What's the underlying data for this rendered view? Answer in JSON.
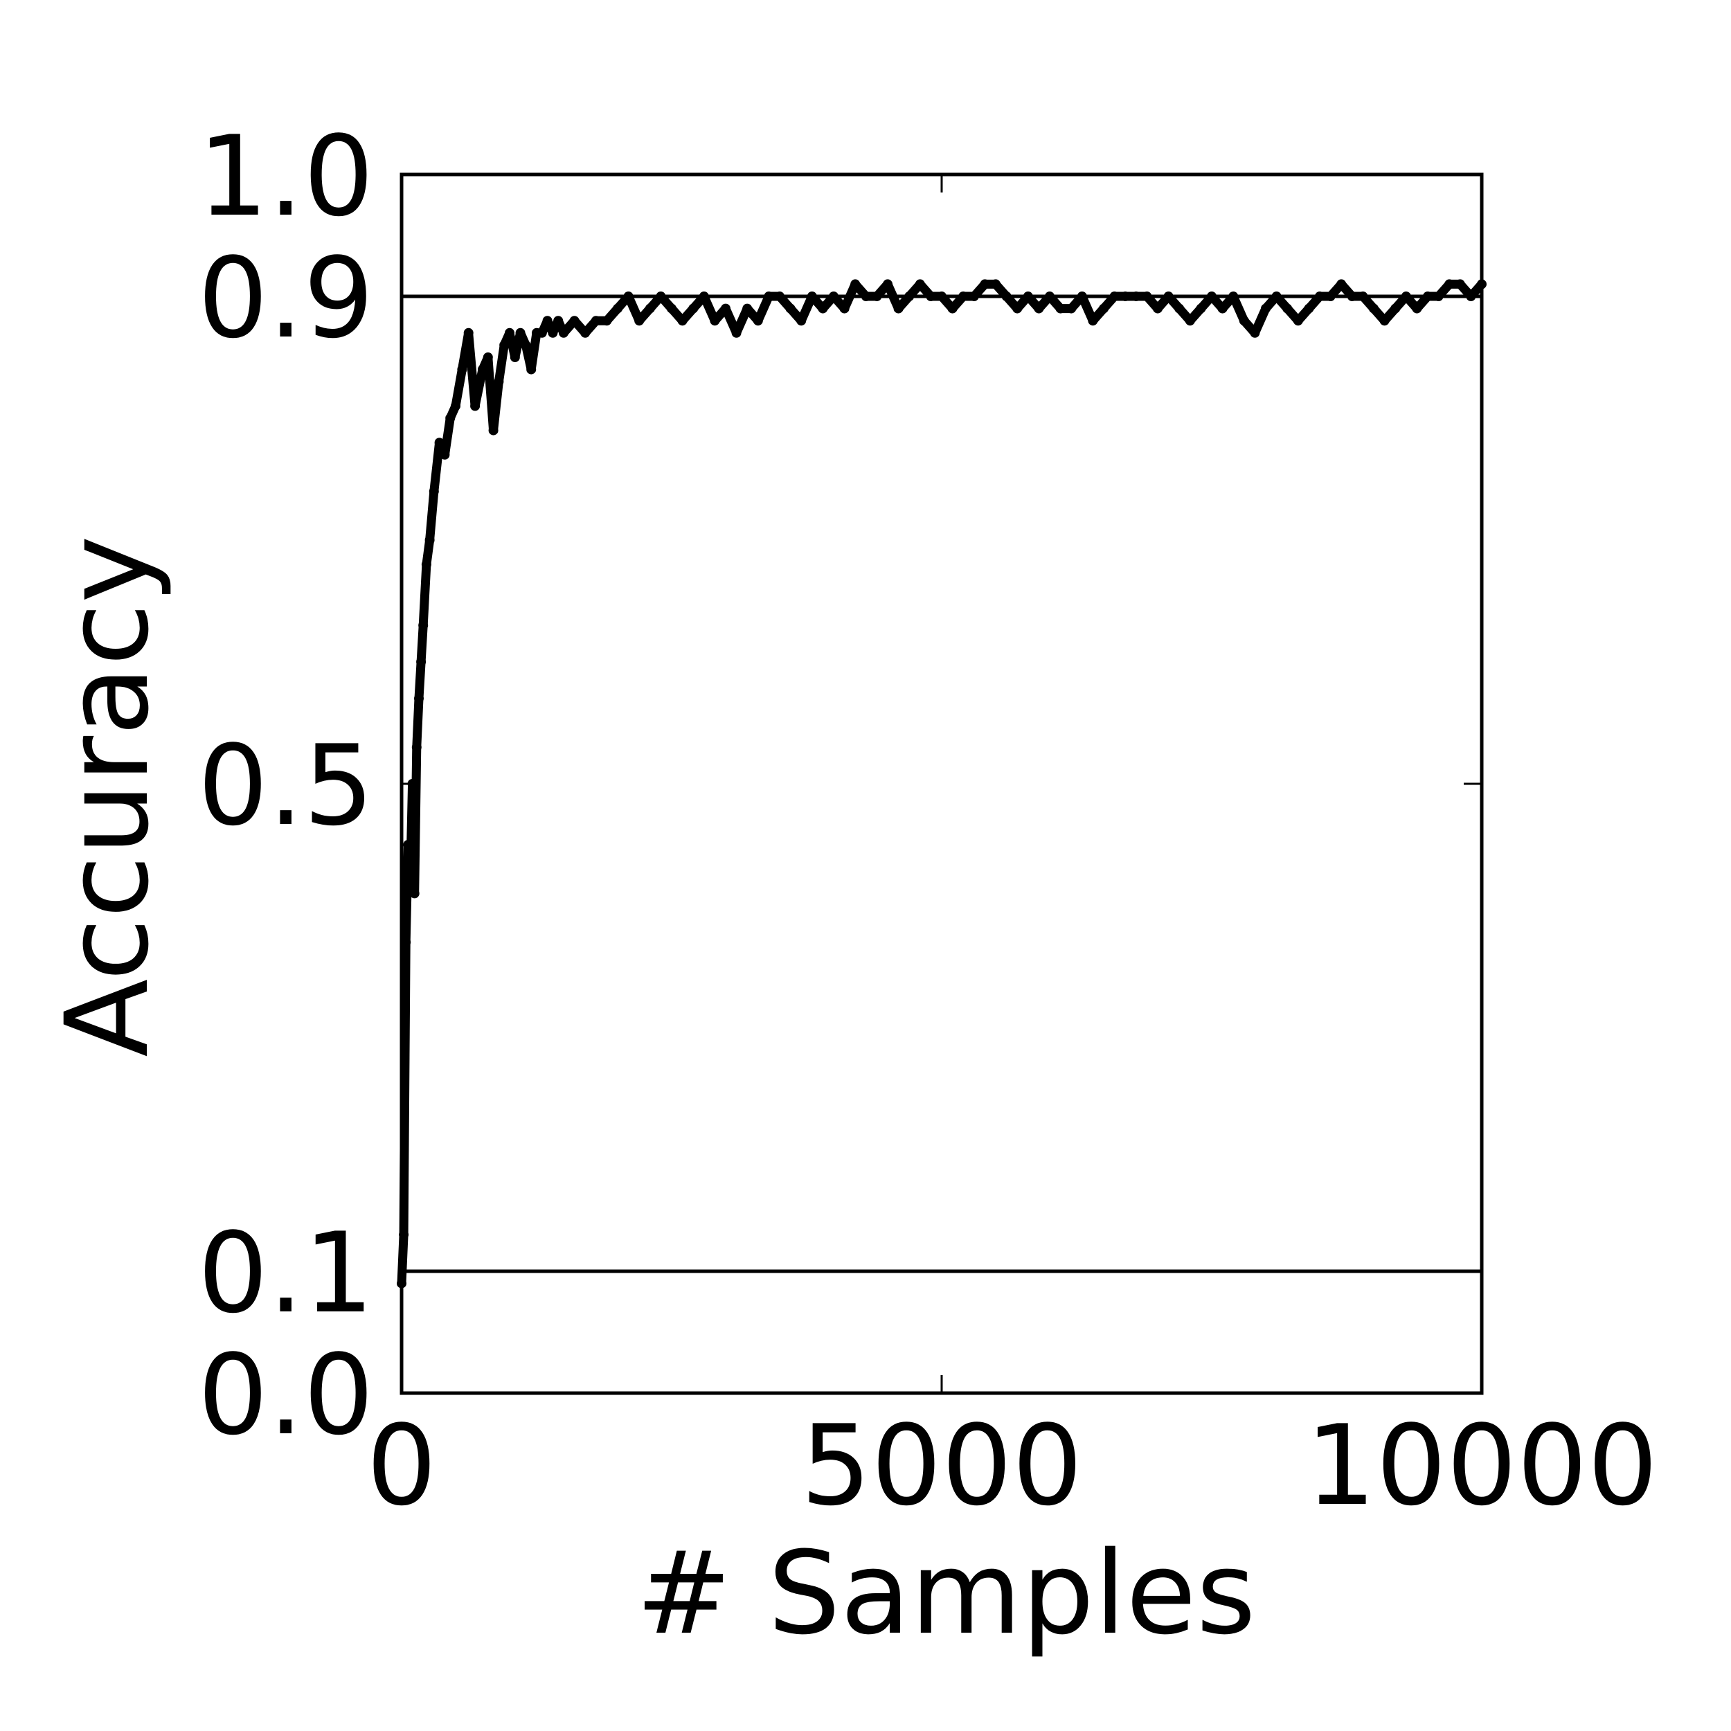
{
  "chart_data": {
    "type": "line",
    "title": "",
    "xlabel": "# Samples",
    "ylabel": "Accuracy",
    "xlim": [
      0,
      10000
    ],
    "ylim": [
      0.0,
      1.0
    ],
    "x_ticks": [
      0,
      5000,
      10000
    ],
    "x_tick_labels": [
      "0",
      "5000",
      "10000"
    ],
    "y_ticks": [
      0.0,
      0.1,
      0.5,
      0.9,
      1.0
    ],
    "y_tick_labels": [
      "0.0",
      "0.1",
      "0.5",
      "0.9",
      "1.0"
    ],
    "grid": false,
    "legend": "none",
    "reference_lines": [
      {
        "axis": "y",
        "value": 0.1
      },
      {
        "axis": "y",
        "value": 0.9
      }
    ],
    "colors": {
      "line": "#000000",
      "axes": "#000000",
      "background": "#ffffff"
    },
    "series": [
      {
        "x": [
          0,
          20,
          40,
          60,
          80,
          100,
          120,
          140,
          160,
          180,
          200,
          230,
          260,
          300,
          350,
          400,
          450,
          500,
          560,
          620,
          680,
          750,
          800,
          850,
          900,
          950,
          1000,
          1050,
          1100,
          1150,
          1200,
          1250,
          1300,
          1350,
          1400,
          1450,
          1500,
          1600,
          1700,
          1800,
          1900,
          2000,
          2100,
          2200,
          2300,
          2400,
          2500,
          2600,
          2700,
          2800,
          2900,
          3000,
          3100,
          3200,
          3300,
          3400,
          3500,
          3600,
          3700,
          3800,
          3900,
          4000,
          4100,
          4200,
          4300,
          4400,
          4500,
          4600,
          4700,
          4800,
          4900,
          5000,
          5100,
          5200,
          5300,
          5400,
          5500,
          5600,
          5700,
          5800,
          5900,
          6000,
          6100,
          6200,
          6300,
          6400,
          6500,
          6600,
          6700,
          6800,
          6900,
          7000,
          7100,
          7200,
          7300,
          7400,
          7500,
          7600,
          7700,
          7800,
          7900,
          8000,
          8100,
          8200,
          8300,
          8400,
          8500,
          8600,
          8700,
          8800,
          8900,
          9000,
          9100,
          9200,
          9300,
          9400,
          9500,
          9600,
          9700,
          9800,
          9900,
          10000
        ],
        "y": [
          0.09,
          0.13,
          0.37,
          0.45,
          0.42,
          0.5,
          0.41,
          0.53,
          0.57,
          0.6,
          0.63,
          0.68,
          0.7,
          0.74,
          0.78,
          0.77,
          0.8,
          0.81,
          0.84,
          0.87,
          0.81,
          0.84,
          0.85,
          0.79,
          0.83,
          0.86,
          0.87,
          0.85,
          0.87,
          0.86,
          0.84,
          0.87,
          0.87,
          0.88,
          0.87,
          0.88,
          0.87,
          0.88,
          0.87,
          0.88,
          0.88,
          0.89,
          0.9,
          0.88,
          0.89,
          0.9,
          0.89,
          0.88,
          0.89,
          0.9,
          0.88,
          0.89,
          0.87,
          0.89,
          0.88,
          0.9,
          0.9,
          0.89,
          0.88,
          0.9,
          0.89,
          0.9,
          0.89,
          0.91,
          0.9,
          0.9,
          0.91,
          0.89,
          0.9,
          0.91,
          0.9,
          0.9,
          0.89,
          0.9,
          0.9,
          0.91,
          0.91,
          0.9,
          0.89,
          0.9,
          0.89,
          0.9,
          0.89,
          0.89,
          0.9,
          0.88,
          0.89,
          0.9,
          0.9,
          0.9,
          0.9,
          0.89,
          0.9,
          0.89,
          0.88,
          0.89,
          0.9,
          0.89,
          0.9,
          0.88,
          0.87,
          0.89,
          0.9,
          0.89,
          0.88,
          0.89,
          0.9,
          0.9,
          0.91,
          0.9,
          0.9,
          0.89,
          0.88,
          0.89,
          0.9,
          0.89,
          0.9,
          0.9,
          0.91,
          0.91,
          0.9,
          0.91
        ]
      }
    ]
  }
}
